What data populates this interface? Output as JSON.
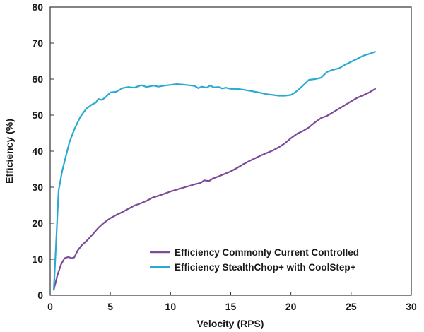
{
  "chart_data": {
    "type": "line",
    "title": "",
    "xlabel": "Velocity (RPS)",
    "ylabel": "Efficiency (%)",
    "xlim": [
      0,
      30
    ],
    "ylim": [
      0,
      80
    ],
    "xticks": [
      0,
      5,
      10,
      15,
      20,
      25,
      30
    ],
    "yticks": [
      0,
      10,
      20,
      30,
      40,
      50,
      60,
      70,
      80
    ],
    "grid": false,
    "legend_position": "bottom-right",
    "series": [
      {
        "name": "Efficiency Commonly Current Controlled",
        "color": "#7b4a9a",
        "x": [
          0.3,
          0.6,
          0.9,
          1.2,
          1.5,
          1.8,
          2.0,
          2.3,
          2.6,
          3.0,
          3.5,
          4.0,
          4.5,
          5.0,
          5.5,
          6.0,
          6.5,
          7.0,
          7.5,
          8.0,
          8.5,
          9.0,
          9.5,
          10.0,
          10.5,
          11.0,
          11.5,
          12.0,
          12.5,
          12.8,
          13.2,
          13.5,
          14.0,
          14.5,
          15.0,
          15.5,
          16.0,
          16.5,
          17.0,
          17.5,
          18.0,
          18.5,
          19.0,
          19.5,
          20.0,
          20.5,
          21.0,
          21.5,
          22.0,
          22.5,
          23.0,
          23.5,
          24.0,
          24.5,
          25.0,
          25.5,
          26.0,
          26.5,
          27.0
        ],
        "values": [
          1.5,
          5.5,
          8.5,
          10.3,
          10.6,
          10.3,
          10.5,
          12.5,
          13.8,
          15.0,
          16.8,
          18.7,
          20.2,
          21.4,
          22.3,
          23.1,
          24.0,
          24.9,
          25.5,
          26.2,
          27.1,
          27.6,
          28.2,
          28.8,
          29.3,
          29.8,
          30.3,
          30.8,
          31.2,
          31.9,
          31.7,
          32.4,
          33.0,
          33.7,
          34.4,
          35.3,
          36.3,
          37.2,
          38.0,
          38.8,
          39.5,
          40.2,
          41.1,
          42.2,
          43.6,
          44.8,
          45.6,
          46.6,
          48.0,
          49.2,
          49.8,
          50.8,
          51.8,
          52.8,
          53.8,
          54.8,
          55.5,
          56.3,
          57.3
        ]
      },
      {
        "name": "Efficiency StealthChop+ with CoolStep+",
        "color": "#2aaad1",
        "x": [
          0.3,
          0.5,
          0.7,
          1.0,
          1.3,
          1.6,
          2.0,
          2.5,
          3.0,
          3.5,
          3.8,
          4.0,
          4.3,
          4.6,
          5.0,
          5.5,
          6.0,
          6.5,
          7.0,
          7.3,
          7.6,
          8.0,
          8.3,
          8.6,
          9.0,
          9.5,
          10.0,
          10.5,
          11.0,
          11.5,
          12.0,
          12.3,
          12.6,
          13.0,
          13.3,
          13.6,
          14.0,
          14.3,
          14.6,
          15.0,
          15.5,
          16.0,
          16.5,
          17.0,
          17.5,
          18.0,
          18.5,
          19.0,
          19.5,
          20.0,
          20.3,
          20.6,
          21.0,
          21.5,
          22.0,
          22.5,
          23.0,
          23.5,
          24.0,
          24.5,
          25.0,
          25.5,
          26.0,
          26.5,
          27.0
        ],
        "values": [
          1.5,
          15.0,
          29.0,
          34.5,
          38.5,
          42.5,
          46.0,
          49.5,
          51.8,
          53.0,
          53.5,
          54.5,
          54.2,
          55.0,
          56.3,
          56.5,
          57.5,
          57.8,
          57.6,
          58.0,
          58.3,
          57.8,
          58.0,
          58.2,
          57.9,
          58.2,
          58.4,
          58.6,
          58.5,
          58.3,
          58.1,
          57.5,
          57.9,
          57.6,
          58.2,
          57.7,
          57.8,
          57.4,
          57.6,
          57.3,
          57.3,
          57.1,
          56.8,
          56.5,
          56.2,
          55.8,
          55.6,
          55.4,
          55.4,
          55.6,
          56.2,
          57.0,
          58.2,
          59.8,
          60.0,
          60.4,
          62.0,
          62.6,
          63.0,
          64.0,
          64.8,
          65.6,
          66.5,
          67.0,
          67.6
        ]
      }
    ]
  }
}
